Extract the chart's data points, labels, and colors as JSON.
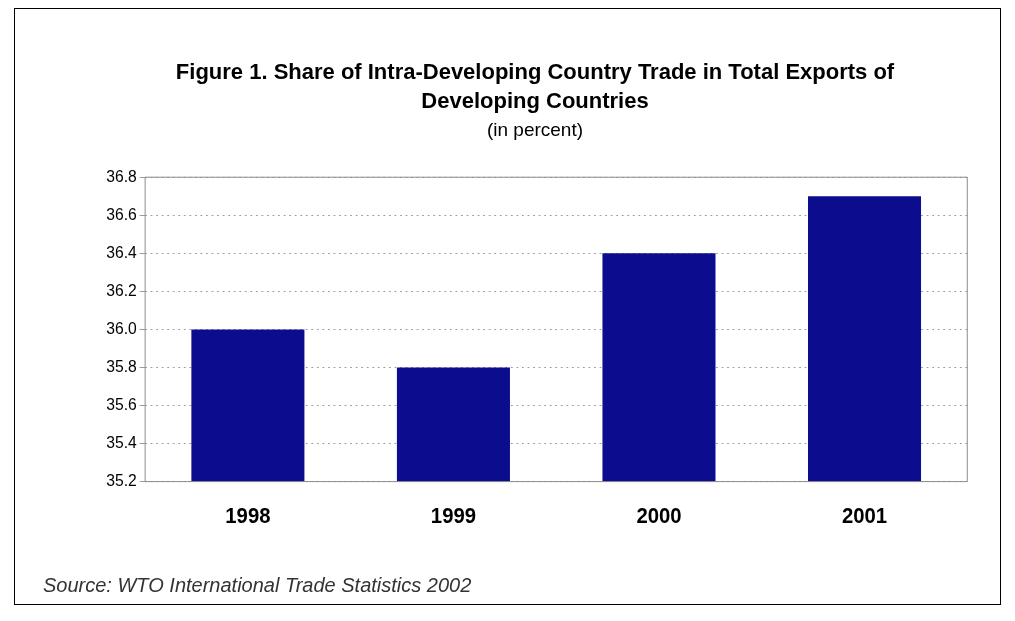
{
  "chart_data": {
    "type": "bar",
    "title": "Figure 1. Share of Intra-Developing Country Trade in Total Exports of Developing Countries",
    "subtitle": "(in percent)",
    "categories": [
      "1998",
      "1999",
      "2000",
      "2001"
    ],
    "values": [
      36.0,
      35.8,
      36.4,
      36.7
    ],
    "color": "#0c0c8e",
    "ylim": [
      35.2,
      36.8
    ],
    "yticks": [
      {
        "value": 35.2,
        "label": "35.2"
      },
      {
        "value": 35.4,
        "label": "35.4"
      },
      {
        "value": 35.6,
        "label": "35.6"
      },
      {
        "value": 35.8,
        "label": "35.8"
      },
      {
        "value": 36.0,
        "label": "36.0"
      },
      {
        "value": 36.2,
        "label": "36.2"
      },
      {
        "value": 36.4,
        "label": "36.4"
      },
      {
        "value": 36.6,
        "label": "36.6"
      },
      {
        "value": 36.8,
        "label": "36.8"
      }
    ],
    "grid": "y",
    "legend": false,
    "annotations": [
      "Source: WTO International Trade Statistics 2002"
    ]
  }
}
